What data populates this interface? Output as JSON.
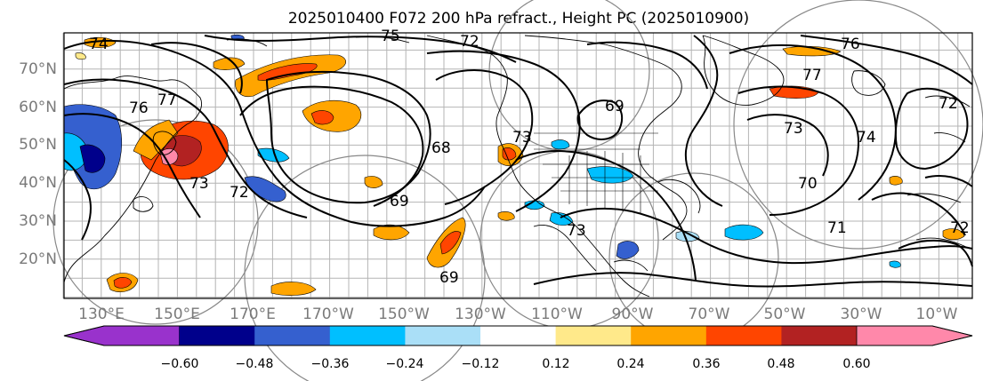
{
  "title": "2025010400 F072 200 hPa refract., Height PC (2025010900)",
  "lat_labels": [
    "70°N",
    "60°N",
    "50°N",
    "40°N",
    "30°N",
    "20°N"
  ],
  "lon_labels": [
    "130°E",
    "150°E",
    "170°E",
    "170°W",
    "150°W",
    "130°W",
    "110°W",
    "90°W",
    "70°W",
    "50°W",
    "30°W",
    "10°W"
  ],
  "colorbar": {
    "colors": [
      "#9932cc",
      "#00008b",
      "#3560cf",
      "#00bfff",
      "#aadff7",
      "#ffffff",
      "#ffe98a",
      "#ffa500",
      "#ff4500",
      "#b22222",
      "#ff88aa"
    ],
    "tick_labels": [
      "−0.60",
      "−0.48",
      "−0.36",
      "−0.24",
      "−0.12",
      "0.12",
      "0.24",
      "0.36",
      "0.48",
      "0.60"
    ]
  },
  "contour_labels": [
    "74",
    "75",
    "72",
    "76",
    "77",
    "76",
    "77",
    "73",
    "72",
    "72",
    "68",
    "69",
    "69",
    "73",
    "74",
    "73",
    "69",
    "73",
    "70",
    "71",
    "72"
  ],
  "fill_colors": {
    "orange": "#ffa500",
    "red": "#ff4500",
    "darkred": "#b22222",
    "pink": "#ff88aa",
    "blue": "#3560cf",
    "cyan": "#00bfff",
    "lightblue": "#aadff7",
    "yellow": "#ffe98a"
  }
}
